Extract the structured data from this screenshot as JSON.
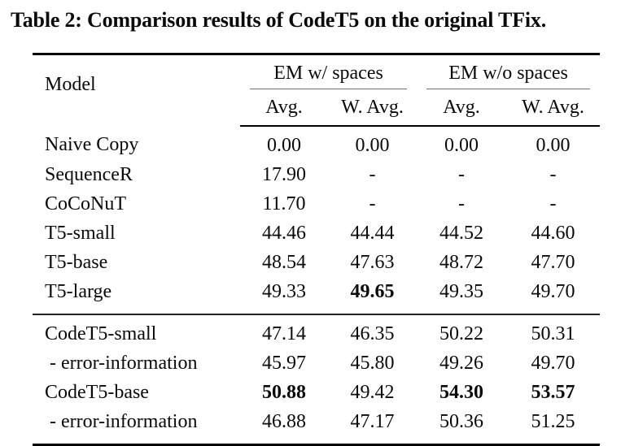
{
  "page": {
    "caption": "Table 2: Comparison results of CodeT5 on the original TFix."
  },
  "colors": {
    "background": "#ffffff",
    "text": "#0a0a0a",
    "heavy_rule": "#000000",
    "cmidrule": "#6f6f6f"
  },
  "table": {
    "model_header": "Model",
    "groups": [
      {
        "label": "EM w/ spaces"
      },
      {
        "label": "EM w/o spaces"
      }
    ],
    "subheaders": [
      "Avg.",
      "W. Avg.",
      "Avg.",
      "W. Avg."
    ],
    "sections": [
      {
        "rows": [
          {
            "model": "Naive Copy",
            "indent": false,
            "values": [
              "0.00",
              "0.00",
              "0.00",
              "0.00"
            ],
            "bold": [
              false,
              false,
              false,
              false
            ]
          },
          {
            "model": "SequenceR",
            "indent": false,
            "values": [
              "17.90",
              "-",
              "-",
              "-"
            ],
            "bold": [
              false,
              false,
              false,
              false
            ]
          },
          {
            "model": "CoCoNuT",
            "indent": false,
            "values": [
              "11.70",
              "-",
              "-",
              "-"
            ],
            "bold": [
              false,
              false,
              false,
              false
            ]
          },
          {
            "model": "T5-small",
            "indent": false,
            "values": [
              "44.46",
              "44.44",
              "44.52",
              "44.60"
            ],
            "bold": [
              false,
              false,
              false,
              false
            ]
          },
          {
            "model": "T5-base",
            "indent": false,
            "values": [
              "48.54",
              "47.63",
              "48.72",
              "47.70"
            ],
            "bold": [
              false,
              false,
              false,
              false
            ]
          },
          {
            "model": "T5-large",
            "indent": false,
            "values": [
              "49.33",
              "49.65",
              "49.35",
              "49.70"
            ],
            "bold": [
              false,
              true,
              false,
              false
            ]
          }
        ]
      },
      {
        "rows": [
          {
            "model": "CodeT5-small",
            "indent": false,
            "values": [
              "47.14",
              "46.35",
              "50.22",
              "50.31"
            ],
            "bold": [
              false,
              false,
              false,
              false
            ]
          },
          {
            "model": "- error-information",
            "indent": true,
            "values": [
              "45.97",
              "45.80",
              "49.26",
              "49.70"
            ],
            "bold": [
              false,
              false,
              false,
              false
            ]
          },
          {
            "model": "CodeT5-base",
            "indent": false,
            "values": [
              "50.88",
              "49.42",
              "54.30",
              "53.57"
            ],
            "bold": [
              true,
              false,
              true,
              true
            ]
          },
          {
            "model": "- error-information",
            "indent": true,
            "values": [
              "46.88",
              "47.17",
              "50.36",
              "51.25"
            ],
            "bold": [
              false,
              false,
              false,
              false
            ]
          }
        ]
      }
    ]
  }
}
